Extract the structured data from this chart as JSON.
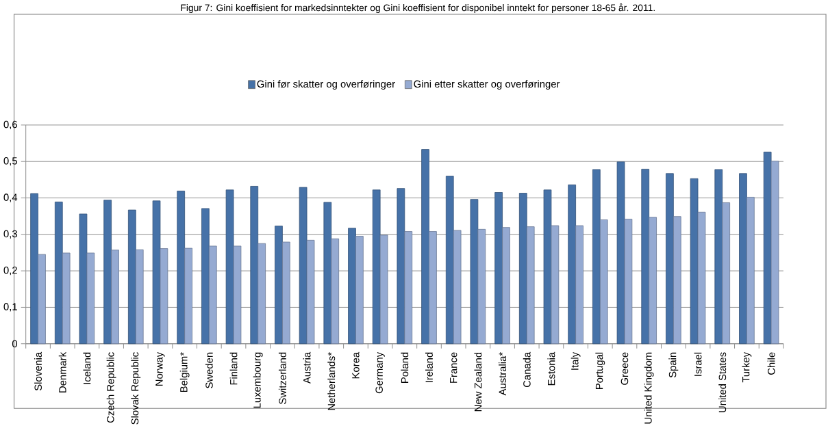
{
  "chart_data": {
    "type": "bar",
    "title": "Figur 7: Gini koeffisient for markedsinntekter og Gini koeffisient for disponibel inntekt for personer 18-65 år. 2011.",
    "categories": [
      "Slovenia",
      "Denmark",
      "Iceland",
      "Czech Republic",
      "Slovak Republic",
      "Norway",
      "Belgium*",
      "Sweden",
      "Finland",
      "Luxembourg",
      "Switzerland",
      "Austria",
      "Netherlands*",
      "Korea",
      "Germany",
      "Poland",
      "Ireland",
      "France",
      "New Zealand",
      "Australia*",
      "Canada",
      "Estonia",
      "Italy",
      "Portugal",
      "Greece",
      "United Kingdom",
      "Spain",
      "Israel",
      "United States",
      "Turkey",
      "Chile"
    ],
    "series": [
      {
        "name": "Gini før skatter og overføringer",
        "color": "#4672a8",
        "values": [
          0.412,
          0.389,
          0.356,
          0.394,
          0.367,
          0.392,
          0.419,
          0.371,
          0.422,
          0.432,
          0.323,
          0.429,
          0.388,
          0.317,
          0.422,
          0.426,
          0.533,
          0.46,
          0.396,
          0.415,
          0.413,
          0.422,
          0.436,
          0.478,
          0.499,
          0.479,
          0.467,
          0.453,
          0.478,
          0.467,
          0.526
        ]
      },
      {
        "name": "Gini etter skatter og overføringer",
        "color": "#95aad2",
        "values": [
          0.245,
          0.249,
          0.249,
          0.257,
          0.258,
          0.261,
          0.262,
          0.268,
          0.268,
          0.275,
          0.279,
          0.284,
          0.288,
          0.295,
          0.298,
          0.308,
          0.308,
          0.311,
          0.314,
          0.319,
          0.321,
          0.324,
          0.324,
          0.34,
          0.342,
          0.347,
          0.349,
          0.361,
          0.387,
          0.402,
          0.501
        ]
      }
    ],
    "ylim": [
      0,
      0.6
    ],
    "yticks": [
      0,
      {
        "value": 0.1,
        "label": "0,1"
      },
      {
        "value": 0.2,
        "label": "0,2"
      },
      {
        "value": 0.3,
        "label": "0,3"
      },
      {
        "value": 0.4,
        "label": "0,4"
      },
      {
        "value": 0.5,
        "label": "0,5"
      },
      {
        "value": 0.6,
        "label": "0,6"
      }
    ],
    "grid": "y",
    "legend": "top"
  }
}
